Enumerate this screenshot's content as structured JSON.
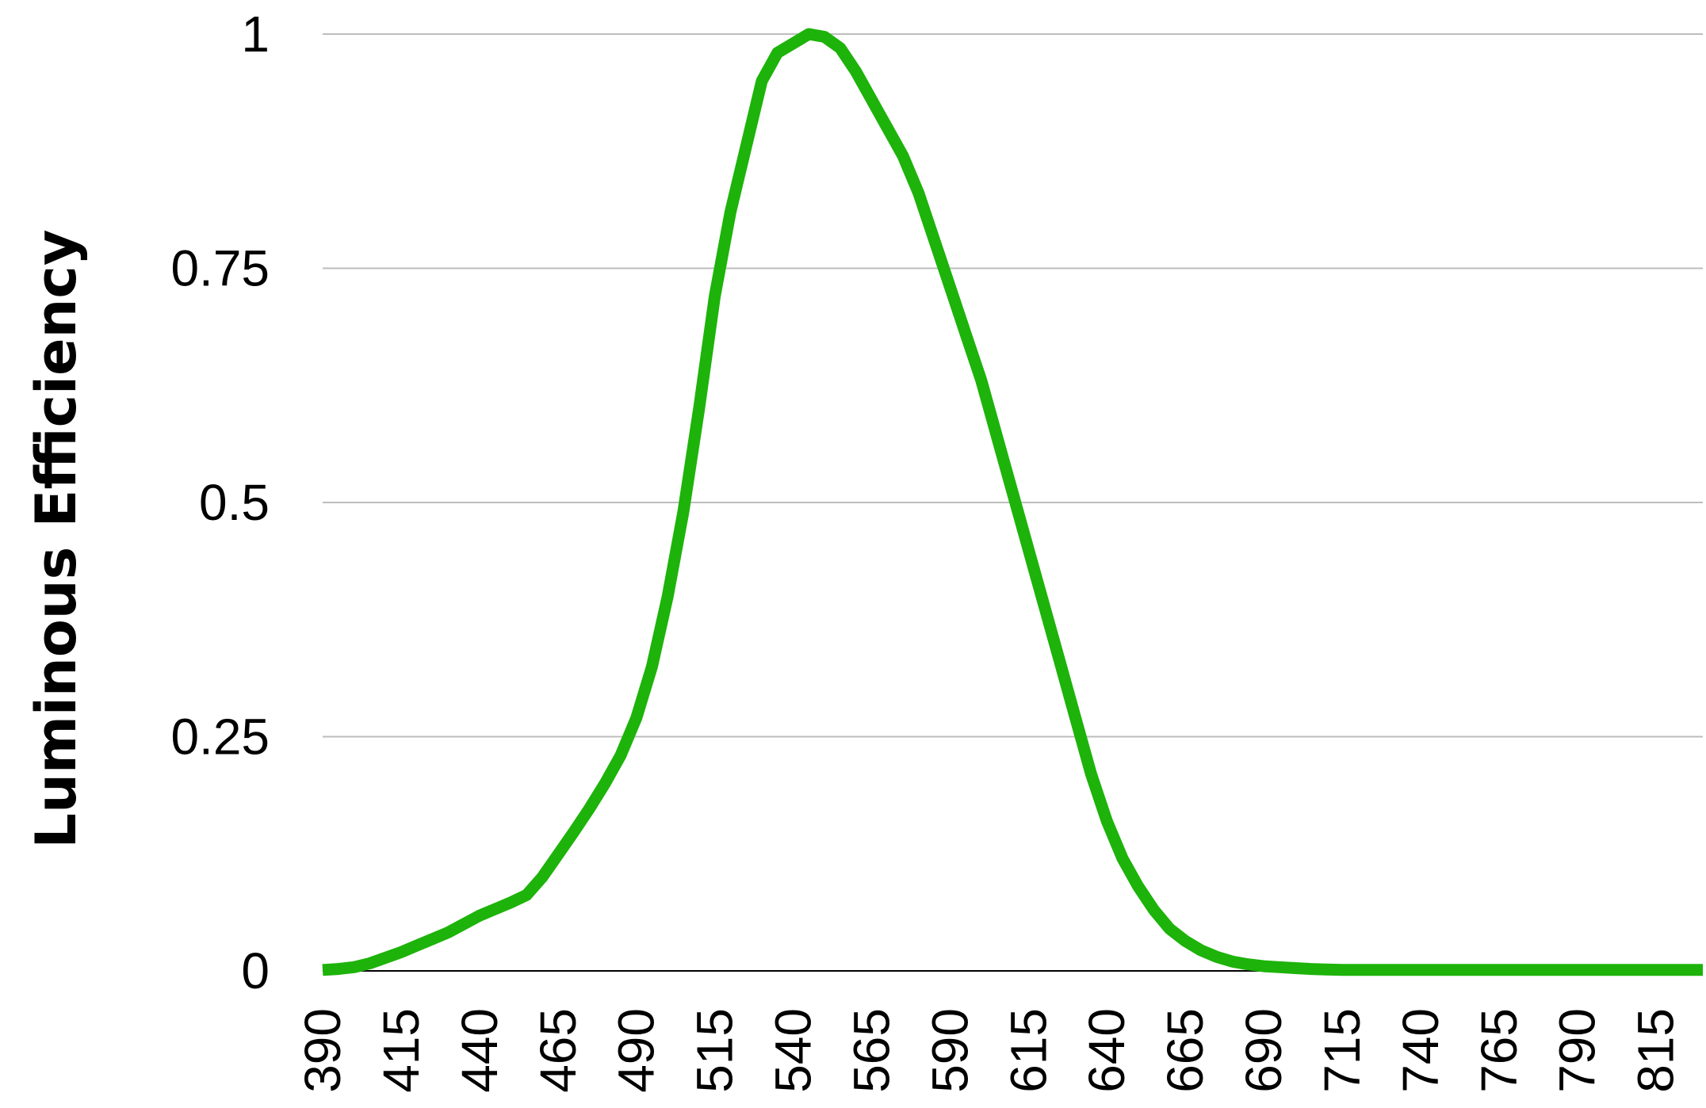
{
  "chart_data": {
    "type": "line",
    "title": "",
    "xlabel": "",
    "ylabel": "Luminous Efficiency",
    "xlim": [
      390,
      830
    ],
    "ylim": [
      0,
      1
    ],
    "grid": true,
    "y_ticks": [
      "0",
      "0.25",
      "0.5",
      "0.75",
      "1"
    ],
    "x_ticks": [
      "390",
      "415",
      "440",
      "465",
      "490",
      "515",
      "540",
      "565",
      "590",
      "615",
      "640",
      "665",
      "690",
      "715",
      "740",
      "765",
      "790",
      "815"
    ],
    "series_color": "#1db30a",
    "series": [
      {
        "x": [
          390,
          395,
          400,
          405,
          410,
          415,
          420,
          425,
          430,
          435,
          440,
          445,
          450,
          455,
          460,
          465,
          470,
          475,
          480,
          485,
          490,
          495,
          500,
          505,
          510,
          515,
          520,
          525,
          530,
          535,
          540,
          545,
          550,
          555,
          560,
          565,
          570,
          575,
          580,
          585,
          590,
          595,
          600,
          605,
          610,
          615,
          620,
          625,
          630,
          635,
          640,
          645,
          650,
          655,
          660,
          665,
          670,
          675,
          680,
          685,
          690,
          695,
          700,
          705,
          710,
          715,
          720,
          725,
          730,
          735,
          740,
          745,
          750,
          755,
          760,
          765,
          770,
          775,
          780,
          785,
          790,
          795,
          800,
          805,
          810,
          815,
          820,
          825,
          830
        ],
        "y": [
          0.001,
          0.002,
          0.004,
          0.008,
          0.014,
          0.02,
          0.027,
          0.034,
          0.041,
          0.05,
          0.059,
          0.066,
          0.073,
          0.081,
          0.1,
          0.124,
          0.148,
          0.173,
          0.2,
          0.23,
          0.27,
          0.325,
          0.4,
          0.49,
          0.6,
          0.72,
          0.81,
          0.88,
          0.95,
          0.98,
          0.99,
          1.0,
          0.997,
          0.985,
          0.96,
          0.93,
          0.9,
          0.87,
          0.83,
          0.78,
          0.73,
          0.68,
          0.63,
          0.57,
          0.51,
          0.45,
          0.39,
          0.33,
          0.27,
          0.21,
          0.16,
          0.12,
          0.09,
          0.065,
          0.045,
          0.032,
          0.022,
          0.015,
          0.01,
          0.007,
          0.005,
          0.004,
          0.003,
          0.002,
          0.0015,
          0.001,
          0.001,
          0.001,
          0.001,
          0.001,
          0.001,
          0.001,
          0.001,
          0.001,
          0.001,
          0.001,
          0.001,
          0.001,
          0.001,
          0.001,
          0.001,
          0.001,
          0.001,
          0.001,
          0.001,
          0.001,
          0.001,
          0.001,
          0.001
        ]
      }
    ]
  }
}
